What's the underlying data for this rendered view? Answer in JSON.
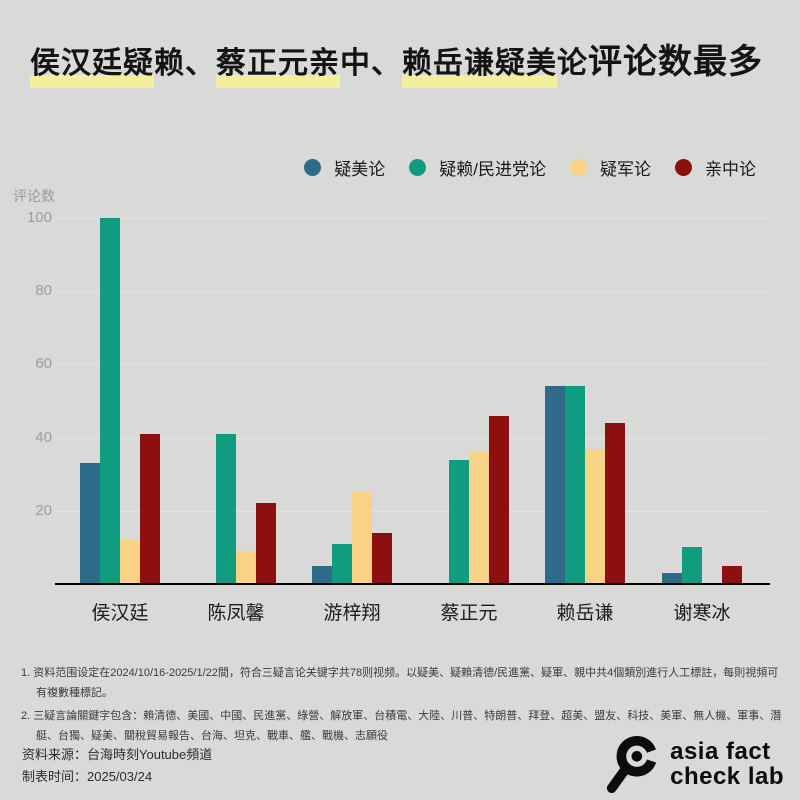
{
  "title": {
    "highlight_color": "#f3ef9c",
    "segments": [
      {
        "text": "侯汉廷疑",
        "highlight": true
      },
      {
        "text": "赖、",
        "highlight": false
      },
      {
        "text": "蔡正元亲",
        "highlight": true
      },
      {
        "text": "中、",
        "highlight": false
      },
      {
        "text": "赖岳谦疑美",
        "highlight": true
      },
      {
        "text": "论 ",
        "highlight": false
      },
      {
        "text": "评论数最多",
        "highlight": false,
        "large": true
      }
    ]
  },
  "chart_data": {
    "type": "bar",
    "title": "侯汉廷疑赖、蔡正元亲中、赖岳谦疑美论 评论数最多",
    "xlabel": "",
    "ylabel": "评论数",
    "categories": [
      "侯汉廷",
      "陈凤馨",
      "游梓翔",
      "蔡正元",
      "赖岳谦",
      "谢寒冰"
    ],
    "series": [
      {
        "name": "疑美论",
        "color": "#2d6b89",
        "values": [
          33,
          0,
          5,
          0,
          54,
          3
        ]
      },
      {
        "name": "疑赖/民进党论",
        "color": "#0f9c7f",
        "values": [
          100,
          41,
          11,
          34,
          54,
          10
        ]
      },
      {
        "name": "疑军论",
        "color": "#f9d286",
        "values": [
          12,
          9,
          25,
          36,
          37,
          0
        ]
      },
      {
        "name": "亲中论",
        "color": "#8d0f0f",
        "values": [
          41,
          22,
          14,
          46,
          44,
          5
        ]
      }
    ],
    "yticks": [
      20,
      40,
      60,
      80,
      100
    ],
    "ylim": [
      0,
      100
    ],
    "grid": true,
    "legend_position": "top-right"
  },
  "footnotes": [
    "1. 资料范围设定在2024/10/16-2025/1/22間，符合三疑言论关键字共78则视频。以疑美、疑賴清德/民進黨、疑軍、親中共4個類別進行人工標註，每則視頻可有複數種標記。",
    "2. 三疑言論關鍵字包含：賴清德、美國、中國、民進黨、綠營、解放軍、台積電、大陸、川普、特朗普、拜登、超美、盟友、科技、美軍、無人機、軍事、潛艇、台獨、疑美、關稅貿易報告、台海、坦克、戰車、艦、戰機、志願役"
  ],
  "footer": {
    "source": "资料来源：台海時刻Youtube頻道",
    "date": "制表时间：2025/03/24",
    "logo_line1": "asia fact",
    "logo_line2": "check lab"
  }
}
